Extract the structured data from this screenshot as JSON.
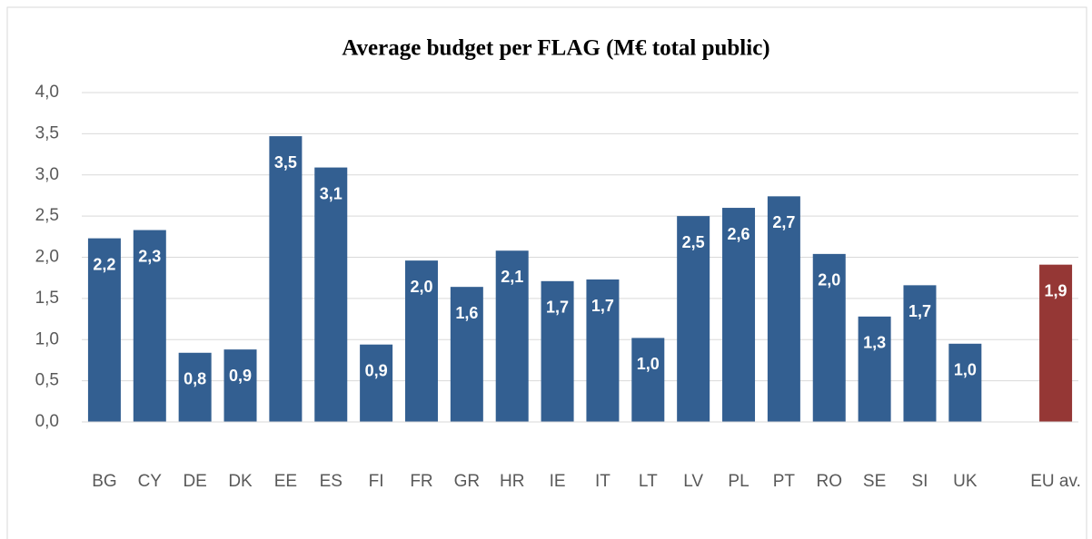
{
  "chart_data": {
    "type": "bar",
    "title": "Average budget per FLAG (M€ total public)",
    "categories": [
      "BG",
      "CY",
      "DE",
      "DK",
      "EE",
      "ES",
      "FI",
      "FR",
      "GR",
      "HR",
      "IE",
      "IT",
      "LT",
      "LV",
      "PL",
      "PT",
      "RO",
      "SE",
      "SI",
      "UK",
      null,
      "EU av."
    ],
    "values": [
      2.23,
      2.33,
      0.84,
      0.88,
      3.47,
      3.09,
      0.94,
      1.96,
      1.64,
      2.08,
      1.71,
      1.73,
      1.02,
      2.5,
      2.6,
      2.74,
      2.04,
      1.28,
      1.66,
      0.95,
      null,
      1.91
    ],
    "value_labels": [
      "2,2",
      "2,3",
      "0,8",
      "0,9",
      "3,5",
      "3,1",
      "0,9",
      "2,0",
      "1,6",
      "2,1",
      "1,7",
      "1,7",
      "1,0",
      "2,5",
      "2,6",
      "2,7",
      "2,0",
      "1,3",
      "1,7",
      "1,0",
      null,
      "1,9"
    ],
    "colors": [
      "#335f91",
      "#335f91",
      "#335f91",
      "#335f91",
      "#335f91",
      "#335f91",
      "#335f91",
      "#335f91",
      "#335f91",
      "#335f91",
      "#335f91",
      "#335f91",
      "#335f91",
      "#335f91",
      "#335f91",
      "#335f91",
      "#335f91",
      "#335f91",
      "#335f91",
      "#335f91",
      null,
      "#953735"
    ],
    "ylim": [
      0,
      4
    ],
    "yticks": [
      {
        "value": 0,
        "label": "0,0"
      },
      {
        "value": 0.5,
        "label": "0,5"
      },
      {
        "value": 1,
        "label": "1,0"
      },
      {
        "value": 1.5,
        "label": "1,5"
      },
      {
        "value": 2,
        "label": "2,0"
      },
      {
        "value": 2.5,
        "label": "2,5"
      },
      {
        "value": 3,
        "label": "3,0"
      },
      {
        "value": 3.5,
        "label": "3,5"
      },
      {
        "value": 4,
        "label": "4,0"
      }
    ],
    "grid": true
  }
}
